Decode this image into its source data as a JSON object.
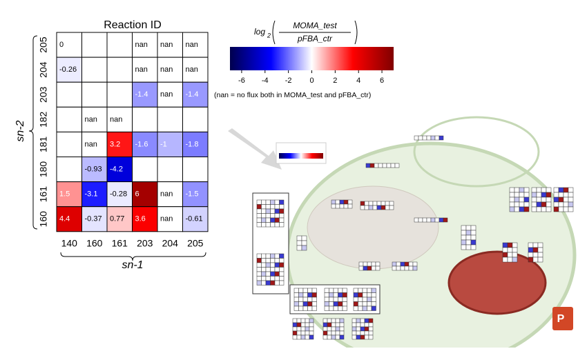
{
  "chart_data": {
    "type": "heatmap",
    "title": "Reaction ID",
    "x_label": "sn-1",
    "y_label": "sn-2",
    "x_categories": [
      "140",
      "160",
      "161",
      "203",
      "204",
      "205"
    ],
    "y_categories": [
      "205",
      "204",
      "203",
      "182",
      "181",
      "180",
      "161",
      "160"
    ],
    "values": [
      [
        0,
        null,
        null,
        null,
        null,
        null
      ],
      [
        -0.26,
        null,
        null,
        null,
        null,
        null
      ],
      [
        null,
        null,
        null,
        -1.4,
        null,
        -1.4
      ],
      [
        null,
        null,
        null,
        null,
        null,
        null
      ],
      [
        null,
        null,
        3.2,
        -1.6,
        -1,
        -1.8
      ],
      [
        null,
        -0.93,
        -4.2,
        null,
        null,
        null
      ],
      [
        1.5,
        -3.1,
        -0.28,
        6,
        null,
        -1.5
      ],
      [
        4.4,
        -0.37,
        0.77,
        3.6,
        null,
        -0.61
      ]
    ],
    "value_labels": [
      [
        null,
        null,
        null,
        "nan",
        "nan",
        "nan"
      ],
      [
        null,
        null,
        null,
        "nan",
        "nan",
        "nan"
      ],
      [
        null,
        null,
        null,
        null,
        "nan",
        null
      ],
      [
        null,
        "nan",
        "nan",
        null,
        null,
        null
      ],
      [
        null,
        "nan",
        null,
        null,
        null,
        null
      ],
      [
        null,
        null,
        null,
        null,
        null,
        null
      ],
      [
        null,
        null,
        null,
        null,
        "nan",
        null
      ],
      [
        null,
        null,
        null,
        null,
        "nan",
        null
      ]
    ],
    "colorbar": {
      "label_parts": [
        "log",
        "2",
        "MOMA_test",
        "pFBA_ctr"
      ],
      "clim": [
        -7,
        7
      ],
      "ticks": [
        -6,
        -4,
        -2,
        0,
        2,
        4,
        6
      ],
      "colors": [
        "#00004d",
        "#0000ff",
        "#ffffff",
        "#ff0000",
        "#800000"
      ]
    },
    "note": "(nan = no flux both in MOMA_test and pFBA_ctr)"
  }
}
